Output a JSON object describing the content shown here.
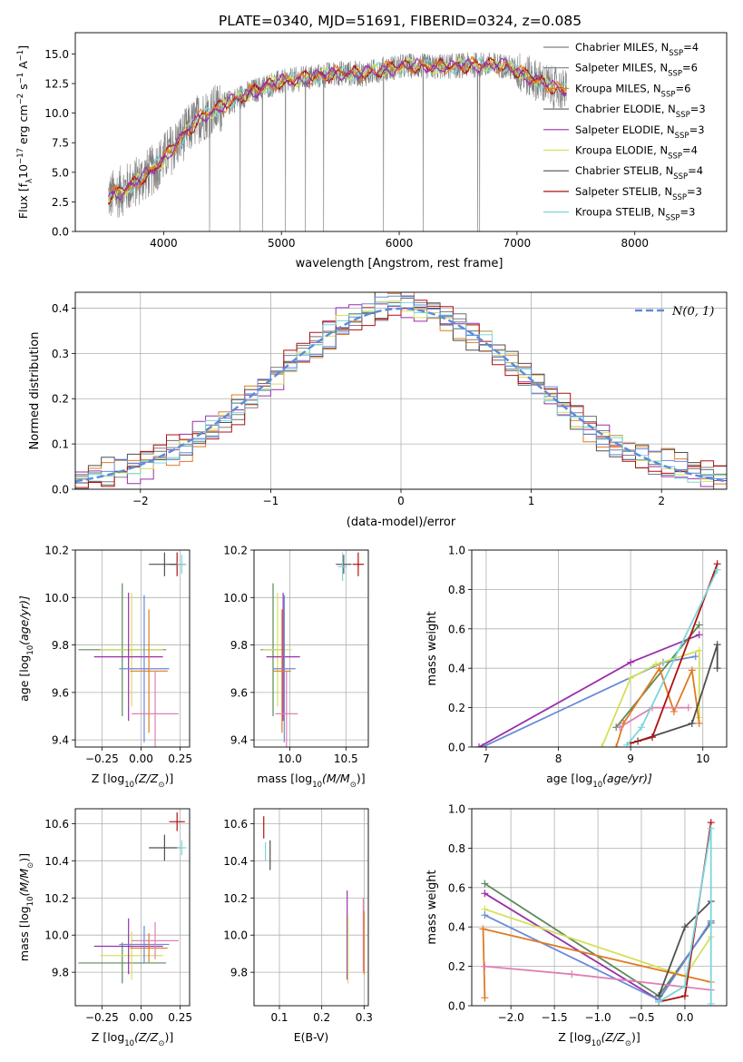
{
  "figure": {
    "title": "PLATE=0340, MJD=51691, FIBERID=0324, z=0.085"
  },
  "colors": {
    "chabrier_miles": "#808080",
    "salpeter_miles": "#7f7f7f",
    "kroupa_miles": "#e07b22",
    "chabrier_elodie": "#6e6e6e",
    "salpeter_elodie": "#9a2fa8",
    "kroupa_elodie": "#d4e05a",
    "chabrier_stelib": "#4f4f4f",
    "salpeter_stelib": "#b01010",
    "kroupa_stelib": "#7ad6dc",
    "normal": "#5b8bd9",
    "blue": "#6a8ad8",
    "green": "#5b8a5b",
    "pink": "#e07fb4",
    "grid": "#b0b0b0"
  },
  "chart_data": [
    {
      "id": "spectrum",
      "type": "line",
      "title": "PLATE=0340, MJD=51691, FIBERID=0324, z=0.085",
      "xlabel": "wavelength [Angstrom, rest frame]",
      "ylabel": "Flux [f",
      "ylabel_sub": "λ",
      "ylabel_mid": "10",
      "ylabel_exp": "−17",
      "ylabel_tail": " erg cm",
      "ylabel_exp2": "−2",
      "ylabel_tail2": " s",
      "ylabel_exp3": "−1",
      "ylabel_tail3": " A",
      "ylabel_exp4": "−1",
      "ylabel_end": "]",
      "xlim": [
        3250,
        8780
      ],
      "ylim": [
        0,
        16.8
      ],
      "xticks": [
        4000,
        5000,
        6000,
        7000,
        8000
      ],
      "xtick_labels": [
        "4000",
        "5000",
        "6000",
        "7000",
        "8000"
      ],
      "yticks": [
        0,
        2.5,
        5,
        7.5,
        10,
        12.5,
        15
      ],
      "ytick_labels": [
        "0.0",
        "2.5",
        "5.0",
        "7.5",
        "10.0",
        "12.5",
        "15.0"
      ],
      "grid": false,
      "legend_position": "upper-right",
      "continuum": {
        "x": [
          3530,
          3700,
          3900,
          4100,
          4300,
          4500,
          4700,
          4900,
          5100,
          5300,
          5500,
          5700,
          5900,
          6100,
          6300,
          6500,
          6700,
          6900,
          7100,
          7300,
          7420
        ],
        "y": [
          2.9,
          3.7,
          5.1,
          7.3,
          9.6,
          10.6,
          11.6,
          12.4,
          12.8,
          13.1,
          13.4,
          13.3,
          13.8,
          14.0,
          13.9,
          14.0,
          14.1,
          14.0,
          13.1,
          12.2,
          11.9
        ]
      },
      "series": [
        {
          "name": "Chabrier MILES",
          "nssp": "4",
          "color_key": "chabrier_miles"
        },
        {
          "name": "Salpeter MILES",
          "nssp": "6",
          "color_key": "salpeter_miles"
        },
        {
          "name": "Kroupa MILES",
          "nssp": "6",
          "color_key": "kroupa_miles"
        },
        {
          "name": "Chabrier ELODIE",
          "nssp": "3",
          "color_key": "chabrier_elodie"
        },
        {
          "name": "Salpeter ELODIE",
          "nssp": "3",
          "color_key": "salpeter_elodie"
        },
        {
          "name": "Kroupa ELODIE",
          "nssp": "4",
          "color_key": "kroupa_elodie"
        },
        {
          "name": "Chabrier STELIB",
          "nssp": "4",
          "color_key": "chabrier_stelib"
        },
        {
          "name": "Salpeter STELIB",
          "nssp": "3",
          "color_key": "salpeter_stelib"
        },
        {
          "name": "Kroupa STELIB",
          "nssp": "3",
          "color_key": "kroupa_stelib"
        }
      ],
      "legend_prefix": "N",
      "legend_sub": "SSP"
    },
    {
      "id": "residuals",
      "type": "bar",
      "xlabel": "(data-model)/error",
      "ylabel": "Normed distribution",
      "xlim": [
        -2.5,
        2.5
      ],
      "ylim": [
        0,
        0.435
      ],
      "xticks": [
        -2,
        -1,
        0,
        1,
        2
      ],
      "xtick_labels": [
        "−2",
        "−1",
        "0",
        "1",
        "2"
      ],
      "yticks": [
        0,
        0.1,
        0.2,
        0.3,
        0.4
      ],
      "ytick_labels": [
        "0.0",
        "0.1",
        "0.2",
        "0.3",
        "0.4"
      ],
      "grid": true,
      "legend": {
        "label": "N(0, 1)"
      },
      "bin_width": 0.1,
      "bin_start": -2.5,
      "series_colors": [
        "chabrier_miles",
        "salpeter_elodie",
        "kroupa_miles",
        "chabrier_elodie",
        "kroupa_elodie",
        "chabrier_stelib",
        "salpeter_stelib",
        "kroupa_stelib",
        "blue"
      ],
      "spread": [
        0.02,
        -0.025,
        0.03,
        -0.015,
        0.01,
        -0.03,
        0.025,
        -0.01,
        0.018
      ]
    },
    {
      "id": "age_vs_Z",
      "type": "scatter",
      "xlabel": "Z [log",
      "xlabel_sub": "10",
      "xlabel_tail": "(Z/Z",
      "xlabel_sun": "⊙",
      "xlabel_end": ")]",
      "ylabel": "age  [log",
      "ylabel_sub": "10",
      "ylabel_tail": "(age/yr)]",
      "xlim": [
        -0.42,
        0.31
      ],
      "ylim": [
        9.37,
        10.2
      ],
      "xticks": [
        -0.25,
        0,
        0.25
      ],
      "xtick_labels": [
        "−0.25",
        "0.00",
        "0.25"
      ],
      "yticks": [
        9.4,
        9.6,
        9.8,
        10.0,
        10.2
      ],
      "ytick_labels": [
        "9.4",
        "9.6",
        "9.8",
        "10.0",
        "10.2"
      ],
      "points": [
        {
          "x": 0.23,
          "y": 10.14,
          "xerr": 0.05,
          "yerr": 0.05,
          "color_key": "salpeter_stelib"
        },
        {
          "x": 0.15,
          "y": 10.14,
          "xerr": 0.1,
          "yerr": 0.05,
          "color_key": "chabrier_stelib"
        },
        {
          "x": 0.26,
          "y": 10.14,
          "xerr": 0.03,
          "yerr": 0.04,
          "color_key": "kroupa_stelib"
        },
        {
          "x": -0.12,
          "y": 9.78,
          "xerr": 0.28,
          "yerr": 0.28,
          "color_key": "green"
        },
        {
          "x": -0.06,
          "y": 9.78,
          "xerr": 0.2,
          "yerr": 0.24,
          "color_key": "kroupa_elodie"
        },
        {
          "x": -0.08,
          "y": 9.75,
          "xerr": 0.22,
          "yerr": 0.27,
          "color_key": "salpeter_elodie"
        },
        {
          "x": 0.02,
          "y": 9.7,
          "xerr": 0.16,
          "yerr": 0.31,
          "color_key": "blue"
        },
        {
          "x": 0.05,
          "y": 9.69,
          "xerr": 0.12,
          "yerr": 0.26,
          "color_key": "kroupa_miles"
        },
        {
          "x": 0.09,
          "y": 9.51,
          "xerr": 0.15,
          "yerr": 0.18,
          "color_key": "pink"
        }
      ]
    },
    {
      "id": "age_vs_mass",
      "type": "scatter",
      "xlabel": "mass [log",
      "xlabel_sub": "10",
      "xlabel_tail": "(M/M",
      "xlabel_sun": "⊙",
      "xlabel_end": ")]",
      "xlim": [
        9.68,
        10.7
      ],
      "ylim": [
        9.37,
        10.2
      ],
      "xticks": [
        10.0,
        10.5
      ],
      "xtick_labels": [
        "10.0",
        "10.5"
      ],
      "yticks": [
        9.4,
        9.6,
        9.8,
        10.0,
        10.2
      ],
      "ytick_labels": [
        "9.4",
        "9.6",
        "9.8",
        "10.0",
        "10.2"
      ],
      "points": [
        {
          "x": 10.61,
          "y": 10.14,
          "xerr": 0.05,
          "yerr": 0.05,
          "color_key": "salpeter_stelib"
        },
        {
          "x": 10.48,
          "y": 10.14,
          "xerr": 0.07,
          "yerr": 0.04,
          "color_key": "chabrier_stelib"
        },
        {
          "x": 10.47,
          "y": 10.13,
          "xerr": 0.04,
          "yerr": 0.06,
          "color_key": "kroupa_stelib"
        },
        {
          "x": 9.85,
          "y": 9.78,
          "xerr": 0.11,
          "yerr": 0.28,
          "color_key": "green"
        },
        {
          "x": 9.89,
          "y": 9.78,
          "xerr": 0.13,
          "yerr": 0.24,
          "color_key": "kroupa_elodie"
        },
        {
          "x": 9.94,
          "y": 9.75,
          "xerr": 0.15,
          "yerr": 0.27,
          "color_key": "salpeter_elodie"
        },
        {
          "x": 9.95,
          "y": 9.7,
          "xerr": 0.1,
          "yerr": 0.31,
          "color_key": "blue"
        },
        {
          "x": 9.93,
          "y": 9.69,
          "xerr": 0.08,
          "yerr": 0.26,
          "color_key": "kroupa_miles"
        },
        {
          "x": 9.97,
          "y": 9.51,
          "xerr": 0.1,
          "yerr": 0.18,
          "color_key": "pink"
        }
      ]
    },
    {
      "id": "weight_vs_age",
      "type": "line",
      "xlabel": "age  [log",
      "xlabel_sub": "10",
      "xlabel_tail": "(age/yr)]",
      "ylabel": "mass weight",
      "xlim": [
        6.8,
        10.33
      ],
      "ylim": [
        0,
        1.0
      ],
      "xticks": [
        7,
        8,
        9,
        10
      ],
      "xtick_labels": [
        "7",
        "8",
        "9",
        "10"
      ],
      "yticks": [
        0,
        0.2,
        0.4,
        0.6,
        0.8,
        1.0
      ],
      "ytick_labels": [
        "0.0",
        "0.2",
        "0.4",
        "0.6",
        "0.8",
        "1.0"
      ],
      "grid": true,
      "series": [
        {
          "color_key": "blue",
          "x": [
            6.95,
            9.45,
            9.9
          ],
          "y": [
            0.0,
            0.43,
            0.46
          ]
        },
        {
          "color_key": "salpeter_elodie",
          "x": [
            6.9,
            9.0,
            9.95
          ],
          "y": [
            0.0,
            0.43,
            0.57
          ]
        },
        {
          "color_key": "green",
          "x": [
            8.8,
            9.95
          ],
          "y": [
            0.1,
            0.62
          ]
        },
        {
          "color_key": "kroupa_elodie",
          "x": [
            8.6,
            9.0,
            9.35,
            9.95,
            9.95
          ],
          "y": [
            0.0,
            0.35,
            0.42,
            0.49,
            0.15
          ]
        },
        {
          "color_key": "kroupa_miles",
          "x": [
            8.8,
            8.9,
            9.4,
            9.6,
            9.85,
            9.95
          ],
          "y": [
            0.0,
            0.12,
            0.4,
            0.18,
            0.39,
            0.12
          ]
        },
        {
          "color_key": "pink",
          "x": [
            8.85,
            9.3,
            9.8
          ],
          "y": [
            0.1,
            0.2,
            0.2
          ]
        },
        {
          "color_key": "chabrier_stelib",
          "x": [
            9.1,
            9.85,
            10.2,
            10.2
          ],
          "y": [
            0.03,
            0.12,
            0.52,
            0.4
          ]
        },
        {
          "color_key": "salpeter_stelib",
          "x": [
            9.0,
            9.3,
            10.2
          ],
          "y": [
            0.02,
            0.05,
            0.93
          ]
        },
        {
          "color_key": "kroupa_stelib",
          "x": [
            8.95,
            9.15,
            10.2
          ],
          "y": [
            0.01,
            0.1,
            0.9
          ]
        }
      ]
    },
    {
      "id": "mass_vs_Z",
      "type": "scatter",
      "xlabel": "Z [log",
      "xlabel_sub": "10",
      "xlabel_tail": "(Z/Z",
      "xlabel_sun": "⊙",
      "xlabel_end": ")]",
      "ylabel": "mass [log",
      "ylabel_sub": "10",
      "ylabel_tail": "(M/M",
      "ylabel_sun": "⊙",
      "ylabel_end": ")]",
      "xlim": [
        -0.42,
        0.31
      ],
      "ylim": [
        9.62,
        10.68
      ],
      "xticks": [
        -0.25,
        0,
        0.25
      ],
      "xtick_labels": [
        "−0.25",
        "0.00",
        "0.25"
      ],
      "yticks": [
        9.8,
        10.0,
        10.2,
        10.4,
        10.6
      ],
      "ytick_labels": [
        "9.8",
        "10.0",
        "10.2",
        "10.4",
        "10.6"
      ],
      "points": [
        {
          "x": 0.23,
          "y": 10.61,
          "xerr": 0.05,
          "yerr": 0.05,
          "color_key": "salpeter_stelib"
        },
        {
          "x": 0.15,
          "y": 10.47,
          "xerr": 0.1,
          "yerr": 0.07,
          "color_key": "chabrier_stelib"
        },
        {
          "x": 0.26,
          "y": 10.47,
          "xerr": 0.03,
          "yerr": 0.04,
          "color_key": "kroupa_stelib"
        },
        {
          "x": -0.12,
          "y": 9.85,
          "xerr": 0.28,
          "yerr": 0.11,
          "color_key": "green"
        },
        {
          "x": -0.06,
          "y": 9.89,
          "xerr": 0.2,
          "yerr": 0.13,
          "color_key": "kroupa_elodie"
        },
        {
          "x": -0.08,
          "y": 9.94,
          "xerr": 0.22,
          "yerr": 0.15,
          "color_key": "salpeter_elodie"
        },
        {
          "x": 0.02,
          "y": 9.95,
          "xerr": 0.16,
          "yerr": 0.1,
          "color_key": "blue"
        },
        {
          "x": 0.05,
          "y": 9.93,
          "xerr": 0.12,
          "yerr": 0.08,
          "color_key": "kroupa_miles"
        },
        {
          "x": 0.09,
          "y": 9.97,
          "xerr": 0.15,
          "yerr": 0.1,
          "color_key": "pink"
        }
      ]
    },
    {
      "id": "mass_vs_ebv",
      "type": "scatter",
      "xlabel": "E(B-V)",
      "xlim": [
        0.04,
        0.31
      ],
      "ylim": [
        9.62,
        10.68
      ],
      "xticks": [
        0.1,
        0.2,
        0.3
      ],
      "xtick_labels": [
        "0.1",
        "0.2",
        "0.3"
      ],
      "yticks": [
        9.8,
        10.0,
        10.2,
        10.4,
        10.6
      ],
      "ytick_labels": [
        "9.8",
        "10.0",
        "10.2",
        "10.4",
        "10.6"
      ],
      "points": [
        {
          "x": 0.063,
          "y": 10.58,
          "xerr": 0,
          "yerr": 0.06,
          "color_key": "salpeter_stelib"
        },
        {
          "x": 0.078,
          "y": 10.43,
          "xerr": 0,
          "yerr": 0.08,
          "color_key": "chabrier_stelib"
        },
        {
          "x": 0.067,
          "y": 10.45,
          "xerr": 0,
          "yerr": 0.05,
          "color_key": "kroupa_stelib"
        },
        {
          "x": 0.26,
          "y": 10.0,
          "xerr": 0,
          "yerr": 0.24,
          "color_key": "salpeter_elodie"
        },
        {
          "x": 0.262,
          "y": 9.92,
          "xerr": 0,
          "yerr": 0.18,
          "color_key": "kroupa_elodie"
        },
        {
          "x": 0.298,
          "y": 10.0,
          "xerr": 0,
          "yerr": 0.2,
          "color_key": "pink"
        },
        {
          "x": 0.3,
          "y": 9.96,
          "xerr": 0,
          "yerr": 0.17,
          "color_key": "kroupa_miles"
        }
      ]
    },
    {
      "id": "weight_vs_Z",
      "type": "line",
      "xlabel": "Z [log",
      "xlabel_sub": "10",
      "xlabel_tail": "(Z/Z",
      "xlabel_sun": "⊙",
      "xlabel_end": ")]",
      "ylabel": "mass weight",
      "xlim": [
        -2.45,
        0.48
      ],
      "ylim": [
        0,
        1.0
      ],
      "xticks": [
        -2.0,
        -1.5,
        -1.0,
        -0.5,
        0.0
      ],
      "xtick_labels": [
        "−2.0",
        "−1.5",
        "−1.0",
        "−0.5",
        "0.0"
      ],
      "yticks": [
        0,
        0.2,
        0.4,
        0.6,
        0.8,
        1.0
      ],
      "ytick_labels": [
        "0.0",
        "0.2",
        "0.4",
        "0.6",
        "0.8",
        "1.0"
      ],
      "grid": true,
      "series": [
        {
          "color_key": "green",
          "x": [
            -2.3,
            -0.3,
            0.3
          ],
          "y": [
            0.62,
            0.05,
            0.42
          ]
        },
        {
          "color_key": "salpeter_elodie",
          "x": [
            -2.3,
            -0.3,
            0.3
          ],
          "y": [
            0.57,
            0.03,
            0.43
          ]
        },
        {
          "color_key": "kroupa_elodie",
          "x": [
            -2.3,
            0.0,
            0.3
          ],
          "y": [
            0.49,
            0.15,
            0.35
          ]
        },
        {
          "color_key": "blue",
          "x": [
            -2.3,
            -0.3,
            0.3
          ],
          "y": [
            0.46,
            0.03,
            0.43
          ]
        },
        {
          "color_key": "kroupa_miles",
          "x": [
            -2.3,
            -2.32,
            0.3
          ],
          "y": [
            0.04,
            0.39,
            0.12
          ]
        },
        {
          "color_key": "pink",
          "x": [
            -2.3,
            -1.3,
            0.3
          ],
          "y": [
            0.2,
            0.16,
            0.08
          ]
        },
        {
          "color_key": "chabrier_stelib",
          "x": [
            -0.3,
            0.0,
            0.3
          ],
          "y": [
            0.05,
            0.4,
            0.53
          ]
        },
        {
          "color_key": "salpeter_stelib",
          "x": [
            -0.3,
            0.0,
            0.3
          ],
          "y": [
            0.02,
            0.05,
            0.93
          ]
        },
        {
          "color_key": "kroupa_stelib",
          "x": [
            -0.3,
            0.0,
            0.3,
            0.3
          ],
          "y": [
            0.02,
            0.1,
            0.9,
            0.01
          ]
        }
      ]
    }
  ]
}
